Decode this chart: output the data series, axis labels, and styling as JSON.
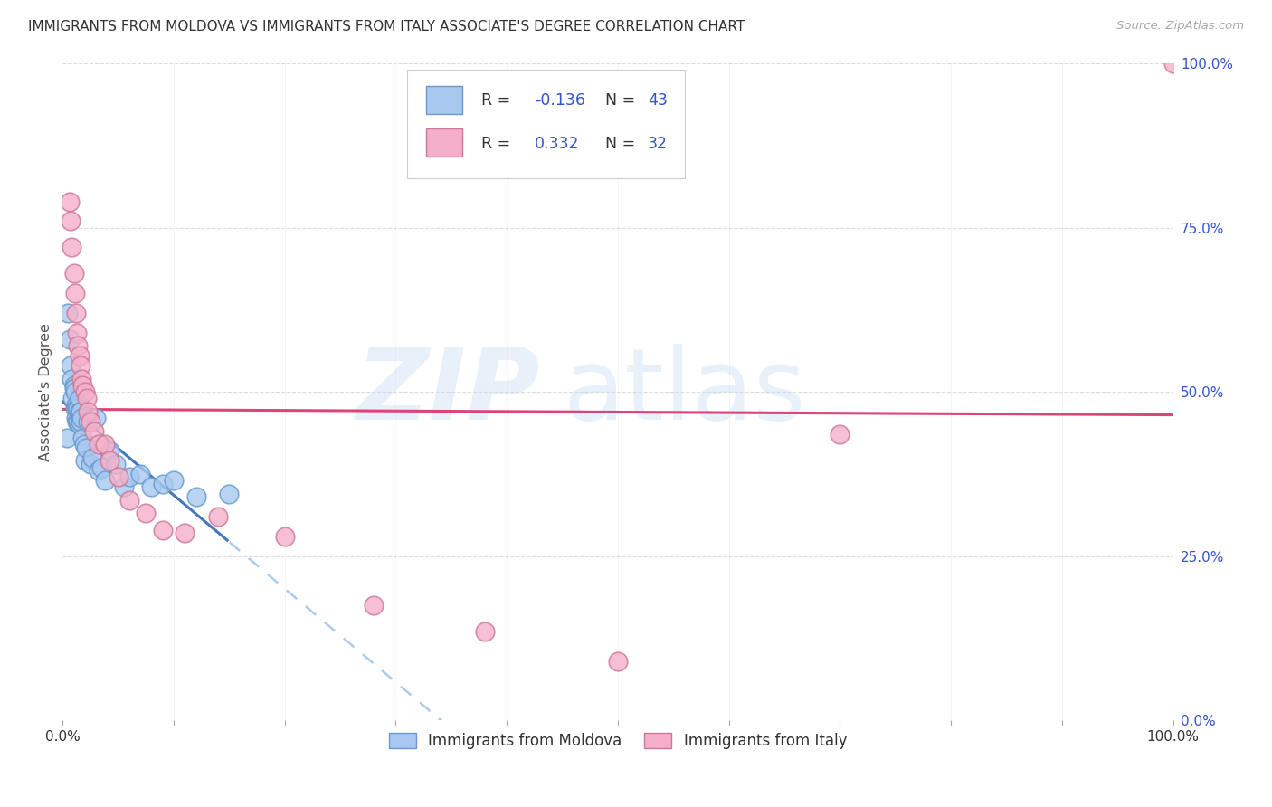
{
  "title": "IMMIGRANTS FROM MOLDOVA VS IMMIGRANTS FROM ITALY ASSOCIATE'S DEGREE CORRELATION CHART",
  "source": "Source: ZipAtlas.com",
  "ylabel": "Associate's Degree",
  "xlim": [
    0.0,
    1.0
  ],
  "ylim": [
    0.0,
    1.0
  ],
  "ytick_labels": [
    "0.0%",
    "25.0%",
    "50.0%",
    "75.0%",
    "100.0%"
  ],
  "ytick_values": [
    0.0,
    0.25,
    0.5,
    0.75,
    1.0
  ],
  "moldova_color": "#a8c8f0",
  "moldova_edge_color": "#6699cc",
  "italy_color": "#f4b0c8",
  "italy_edge_color": "#cc7799",
  "trend_moldova_solid_color": "#4477bb",
  "trend_moldova_dash_color": "#aaccee",
  "trend_italy_color": "#dd4477",
  "legend_blue": "#3355cc",
  "moldova_R": "-0.136",
  "moldova_N": "43",
  "italy_R": "0.332",
  "italy_N": "32",
  "background_color": "#ffffff",
  "grid_color": "#cccccc",
  "moldova_x": [
    0.004,
    0.005,
    0.006,
    0.007,
    0.008,
    0.009,
    0.01,
    0.01,
    0.011,
    0.011,
    0.012,
    0.012,
    0.013,
    0.013,
    0.014,
    0.014,
    0.015,
    0.015,
    0.015,
    0.016,
    0.016,
    0.017,
    0.018,
    0.019,
    0.02,
    0.021,
    0.023,
    0.025,
    0.027,
    0.03,
    0.032,
    0.035,
    0.038,
    0.042,
    0.048,
    0.055,
    0.06,
    0.07,
    0.08,
    0.09,
    0.1,
    0.12,
    0.15
  ],
  "moldova_y": [
    0.43,
    0.62,
    0.58,
    0.54,
    0.52,
    0.49,
    0.51,
    0.505,
    0.5,
    0.475,
    0.48,
    0.46,
    0.475,
    0.455,
    0.475,
    0.455,
    0.49,
    0.47,
    0.45,
    0.47,
    0.455,
    0.46,
    0.43,
    0.42,
    0.395,
    0.415,
    0.455,
    0.39,
    0.4,
    0.46,
    0.38,
    0.385,
    0.365,
    0.41,
    0.39,
    0.355,
    0.37,
    0.375,
    0.355,
    0.36,
    0.365,
    0.34,
    0.345
  ],
  "italy_x": [
    0.006,
    0.007,
    0.008,
    0.01,
    0.011,
    0.012,
    0.013,
    0.014,
    0.015,
    0.016,
    0.017,
    0.018,
    0.02,
    0.022,
    0.023,
    0.025,
    0.028,
    0.032,
    0.038,
    0.042,
    0.05,
    0.06,
    0.075,
    0.09,
    0.11,
    0.14,
    0.2,
    0.28,
    0.38,
    0.5,
    0.7,
    1.0
  ],
  "italy_y": [
    0.79,
    0.76,
    0.72,
    0.68,
    0.65,
    0.62,
    0.59,
    0.57,
    0.555,
    0.54,
    0.52,
    0.51,
    0.5,
    0.49,
    0.47,
    0.455,
    0.44,
    0.42,
    0.42,
    0.395,
    0.37,
    0.335,
    0.315,
    0.29,
    0.285,
    0.31,
    0.28,
    0.175,
    0.135,
    0.09,
    0.435,
    1.0
  ]
}
